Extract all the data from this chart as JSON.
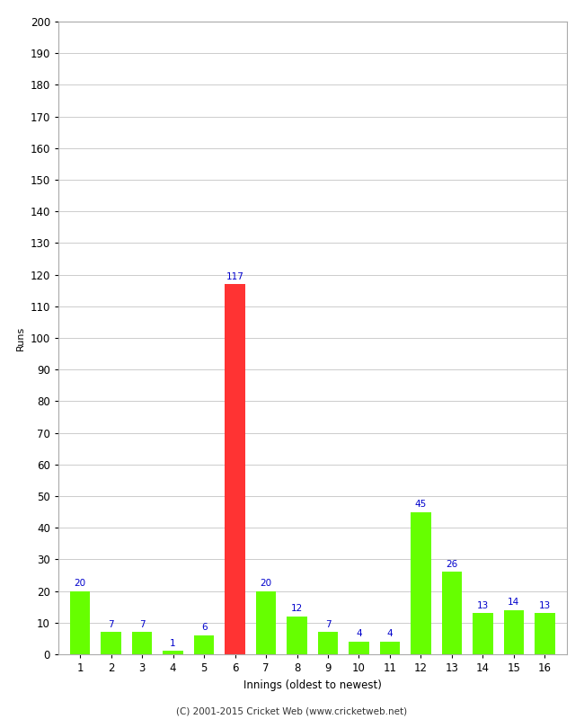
{
  "xlabel": "Innings (oldest to newest)",
  "ylabel": "Runs",
  "categories": [
    1,
    2,
    3,
    4,
    5,
    6,
    7,
    8,
    9,
    10,
    11,
    12,
    13,
    14,
    15,
    16
  ],
  "values": [
    20,
    7,
    7,
    1,
    6,
    117,
    20,
    12,
    7,
    4,
    4,
    45,
    26,
    13,
    14,
    13
  ],
  "bar_colors": [
    "#66ff00",
    "#66ff00",
    "#66ff00",
    "#66ff00",
    "#66ff00",
    "#ff3333",
    "#66ff00",
    "#66ff00",
    "#66ff00",
    "#66ff00",
    "#66ff00",
    "#66ff00",
    "#66ff00",
    "#66ff00",
    "#66ff00",
    "#66ff00"
  ],
  "ylim": [
    0,
    200
  ],
  "yticks": [
    0,
    10,
    20,
    30,
    40,
    50,
    60,
    70,
    80,
    90,
    100,
    110,
    120,
    130,
    140,
    150,
    160,
    170,
    180,
    190,
    200
  ],
  "label_color": "#0000cc",
  "footer": "(C) 2001-2015 Cricket Web (www.cricketweb.net)",
  "background_color": "#ffffff",
  "grid_color": "#cccccc",
  "label_fontsize": 7.5,
  "axis_fontsize": 8.5,
  "ylabel_fontsize": 8,
  "footer_fontsize": 7.5
}
